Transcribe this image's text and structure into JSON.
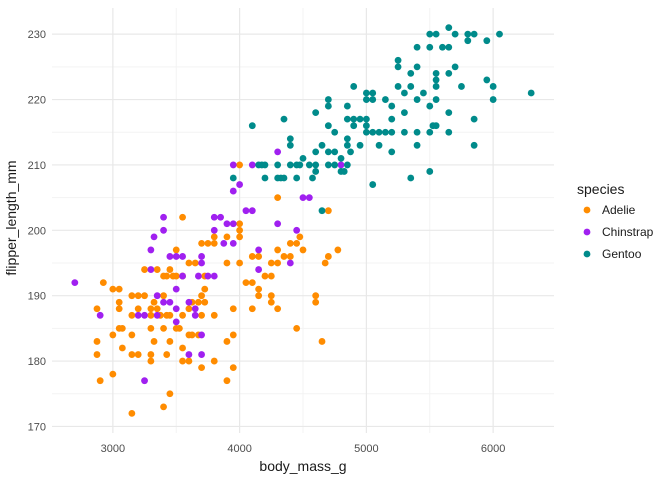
{
  "figure": {
    "background": "#ffffff"
  },
  "chart_data": {
    "type": "scatter",
    "title": "",
    "xlabel": "body_mass_g",
    "ylabel": "flipper_length_mm",
    "xlim": [
      2520,
      6480
    ],
    "ylim": [
      169,
      234
    ],
    "x_ticks": [
      3000,
      4000,
      5000,
      6000
    ],
    "y_ticks": [
      170,
      180,
      190,
      200,
      210,
      220,
      230
    ],
    "x_minor_ticks": [
      3500,
      4500,
      5500
    ],
    "y_minor_ticks": [
      175,
      185,
      195,
      205,
      215,
      225
    ],
    "grid": true,
    "grid_major_color": "#e8e8e8",
    "grid_minor_color": "#f3f3f3",
    "legend_position": "right",
    "legend_title": "species",
    "point_radius": 3.4,
    "series": [
      {
        "name": "Adelie",
        "color": "#FF8C00",
        "points": [
          [
            4000,
            210
          ],
          [
            4300,
            205
          ],
          [
            4700,
            203
          ],
          [
            4000,
            201
          ],
          [
            4000,
            200
          ],
          [
            3900,
            199
          ],
          [
            4000,
            199
          ],
          [
            4475,
            199
          ],
          [
            4400,
            198
          ],
          [
            4450,
            198
          ],
          [
            4300,
            197
          ],
          [
            4500,
            197
          ],
          [
            4775,
            197
          ],
          [
            4100,
            196
          ],
          [
            4150,
            196
          ],
          [
            4350,
            196
          ],
          [
            4400,
            196
          ],
          [
            4700,
            196
          ],
          [
            3900,
            195
          ],
          [
            4000,
            195
          ],
          [
            4250,
            195
          ],
          [
            4300,
            195
          ],
          [
            4675,
            195
          ],
          [
            4200,
            193
          ],
          [
            4250,
            193
          ],
          [
            4050,
            192
          ],
          [
            4100,
            192
          ],
          [
            4150,
            191
          ],
          [
            4600,
            190
          ],
          [
            4250,
            190
          ],
          [
            3550,
            202
          ],
          [
            3750,
            198
          ],
          [
            3800,
            199
          ],
          [
            3700,
            198
          ],
          [
            3800,
            198
          ],
          [
            3500,
            197
          ],
          [
            3600,
            195
          ],
          [
            3650,
            195
          ],
          [
            3250,
            194
          ],
          [
            3350,
            194
          ],
          [
            3450,
            194
          ],
          [
            3400,
            193
          ],
          [
            3425,
            193
          ],
          [
            3475,
            193
          ],
          [
            3500,
            193
          ],
          [
            3550,
            193
          ],
          [
            3725,
            193
          ],
          [
            2925,
            192
          ],
          [
            3000,
            191
          ],
          [
            3050,
            191
          ],
          [
            3725,
            191
          ],
          [
            3150,
            190
          ],
          [
            3200,
            190
          ],
          [
            3250,
            190
          ],
          [
            3400,
            190
          ],
          [
            3700,
            190
          ],
          [
            3050,
            189
          ],
          [
            3325,
            189
          ],
          [
            3625,
            189
          ],
          [
            3675,
            189
          ],
          [
            3725,
            189
          ],
          [
            2875,
            188
          ],
          [
            3050,
            188
          ],
          [
            3200,
            188
          ],
          [
            3300,
            188
          ],
          [
            3350,
            188
          ],
          [
            3600,
            188
          ],
          [
            3150,
            187
          ],
          [
            3300,
            187
          ],
          [
            3375,
            187
          ],
          [
            3425,
            187
          ],
          [
            3450,
            187
          ],
          [
            3550,
            187
          ],
          [
            3700,
            187
          ],
          [
            3800,
            187
          ],
          [
            3050,
            185
          ],
          [
            3075,
            185
          ],
          [
            3300,
            185
          ],
          [
            3400,
            185
          ],
          [
            3500,
            185
          ],
          [
            3525,
            185
          ],
          [
            3000,
            184
          ],
          [
            3150,
            184
          ],
          [
            3600,
            184
          ],
          [
            3625,
            184
          ],
          [
            3675,
            184
          ],
          [
            2875,
            183
          ],
          [
            3325,
            183
          ],
          [
            3450,
            183
          ],
          [
            3900,
            183
          ],
          [
            3075,
            182
          ],
          [
            3550,
            182
          ],
          [
            2875,
            181
          ],
          [
            3150,
            181
          ],
          [
            3200,
            181
          ],
          [
            3300,
            181
          ],
          [
            3425,
            181
          ],
          [
            3550,
            180
          ],
          [
            3600,
            180
          ],
          [
            3800,
            180
          ],
          [
            3300,
            180
          ],
          [
            3700,
            179
          ],
          [
            3000,
            178
          ],
          [
            2900,
            177
          ],
          [
            3900,
            177
          ],
          [
            3450,
            175
          ],
          [
            3400,
            173
          ],
          [
            3150,
            172
          ],
          [
            4150,
            190
          ],
          [
            4250,
            189
          ],
          [
            4600,
            189
          ],
          [
            3950,
            188
          ],
          [
            4100,
            188
          ],
          [
            4300,
            188
          ],
          [
            4450,
            185
          ],
          [
            3950,
            184
          ],
          [
            4650,
            183
          ],
          [
            3950,
            179
          ]
        ]
      },
      {
        "name": "Chinstrap",
        "color": "#A020F0",
        "points": [
          [
            4300,
            212
          ],
          [
            3950,
            210
          ],
          [
            4100,
            210
          ],
          [
            4800,
            210
          ],
          [
            4000,
            207
          ],
          [
            3950,
            206
          ],
          [
            4500,
            205
          ],
          [
            4550,
            205
          ],
          [
            4050,
            203
          ],
          [
            4100,
            203
          ],
          [
            3900,
            201
          ],
          [
            3950,
            201
          ],
          [
            4300,
            201
          ],
          [
            4450,
            200
          ],
          [
            3950,
            198
          ],
          [
            4150,
            197
          ],
          [
            4150,
            194
          ],
          [
            4400,
            195
          ],
          [
            3400,
            202
          ],
          [
            3800,
            202
          ],
          [
            3850,
            202
          ],
          [
            3400,
            200
          ],
          [
            3800,
            200
          ],
          [
            3325,
            199
          ],
          [
            3875,
            198
          ],
          [
            3300,
            197
          ],
          [
            3450,
            196
          ],
          [
            3500,
            196
          ],
          [
            3550,
            196
          ],
          [
            3700,
            196
          ],
          [
            3700,
            195
          ],
          [
            3300,
            194
          ],
          [
            3550,
            193
          ],
          [
            3675,
            193
          ],
          [
            3750,
            193
          ],
          [
            3800,
            193
          ],
          [
            2700,
            192
          ],
          [
            3500,
            191
          ],
          [
            3350,
            190
          ],
          [
            3400,
            189
          ],
          [
            3450,
            189
          ],
          [
            3600,
            189
          ],
          [
            3500,
            188
          ],
          [
            3650,
            188
          ],
          [
            2900,
            187
          ],
          [
            3200,
            187
          ],
          [
            3250,
            187
          ],
          [
            3350,
            187
          ],
          [
            3500,
            186
          ],
          [
            3650,
            187
          ],
          [
            3700,
            184
          ],
          [
            3600,
            181
          ],
          [
            3700,
            181
          ],
          [
            3250,
            177
          ]
        ]
      },
      {
        "name": "Gentoo",
        "color": "#008B8B",
        "points": [
          [
            5650,
            231
          ],
          [
            6050,
            230
          ],
          [
            5500,
            230
          ],
          [
            5550,
            230
          ],
          [
            5700,
            230
          ],
          [
            5800,
            230
          ],
          [
            5850,
            230
          ],
          [
            5800,
            229
          ],
          [
            5950,
            229
          ],
          [
            5400,
            228
          ],
          [
            5500,
            228
          ],
          [
            5600,
            228
          ],
          [
            5650,
            228
          ],
          [
            5250,
            226
          ],
          [
            5250,
            225
          ],
          [
            5400,
            225
          ],
          [
            5700,
            225
          ],
          [
            5350,
            224
          ],
          [
            5550,
            224
          ],
          [
            5650,
            224
          ],
          [
            5550,
            223
          ],
          [
            5950,
            223
          ],
          [
            5250,
            222
          ],
          [
            5350,
            222
          ],
          [
            5550,
            222
          ],
          [
            5750,
            222
          ],
          [
            6000,
            222
          ],
          [
            4900,
            222
          ],
          [
            6300,
            221
          ],
          [
            5000,
            221
          ],
          [
            5050,
            221
          ],
          [
            5300,
            221
          ],
          [
            5450,
            221
          ],
          [
            4700,
            220
          ],
          [
            5000,
            220
          ],
          [
            5050,
            220
          ],
          [
            5150,
            220
          ],
          [
            5400,
            220
          ],
          [
            5550,
            220
          ],
          [
            6000,
            220
          ],
          [
            4700,
            219
          ],
          [
            4850,
            219
          ],
          [
            5200,
            219
          ],
          [
            5500,
            219
          ],
          [
            4600,
            218
          ],
          [
            5300,
            218
          ],
          [
            5650,
            218
          ],
          [
            4350,
            217
          ],
          [
            4850,
            217
          ],
          [
            4900,
            217
          ],
          [
            4950,
            217
          ],
          [
            5000,
            217
          ],
          [
            5200,
            217
          ],
          [
            5850,
            217
          ],
          [
            4100,
            216
          ],
          [
            4700,
            216
          ],
          [
            4900,
            216
          ],
          [
            5000,
            216
          ],
          [
            5525,
            216
          ],
          [
            5550,
            216
          ],
          [
            4750,
            215
          ],
          [
            5000,
            215
          ],
          [
            5050,
            215
          ],
          [
            5100,
            215
          ],
          [
            5150,
            215
          ],
          [
            5200,
            215
          ],
          [
            5300,
            215
          ],
          [
            5400,
            215
          ],
          [
            5500,
            215
          ],
          [
            5650,
            215
          ],
          [
            4400,
            214
          ],
          [
            4850,
            214
          ],
          [
            4400,
            213
          ],
          [
            4650,
            213
          ],
          [
            4850,
            213
          ],
          [
            4950,
            213
          ],
          [
            5100,
            213
          ],
          [
            5400,
            213
          ],
          [
            5850,
            213
          ],
          [
            5200,
            212
          ],
          [
            4600,
            212
          ],
          [
            4700,
            212
          ],
          [
            4750,
            212
          ],
          [
            4875,
            212
          ],
          [
            4500,
            211
          ],
          [
            4800,
            211
          ],
          [
            4150,
            210
          ],
          [
            4175,
            210
          ],
          [
            4200,
            210
          ],
          [
            4300,
            210
          ],
          [
            4400,
            210
          ],
          [
            4450,
            210
          ],
          [
            4475,
            210
          ],
          [
            4550,
            210
          ],
          [
            4600,
            210
          ],
          [
            4700,
            210
          ],
          [
            4750,
            210
          ],
          [
            4850,
            210
          ],
          [
            4600,
            209
          ],
          [
            4800,
            209
          ],
          [
            4825,
            209
          ],
          [
            5500,
            209
          ],
          [
            3950,
            208
          ],
          [
            4200,
            208
          ],
          [
            4300,
            208
          ],
          [
            4325,
            208
          ],
          [
            4350,
            208
          ],
          [
            4450,
            208
          ],
          [
            4575,
            208
          ],
          [
            5350,
            208
          ],
          [
            5050,
            207
          ],
          [
            4650,
            203
          ]
        ]
      }
    ]
  }
}
